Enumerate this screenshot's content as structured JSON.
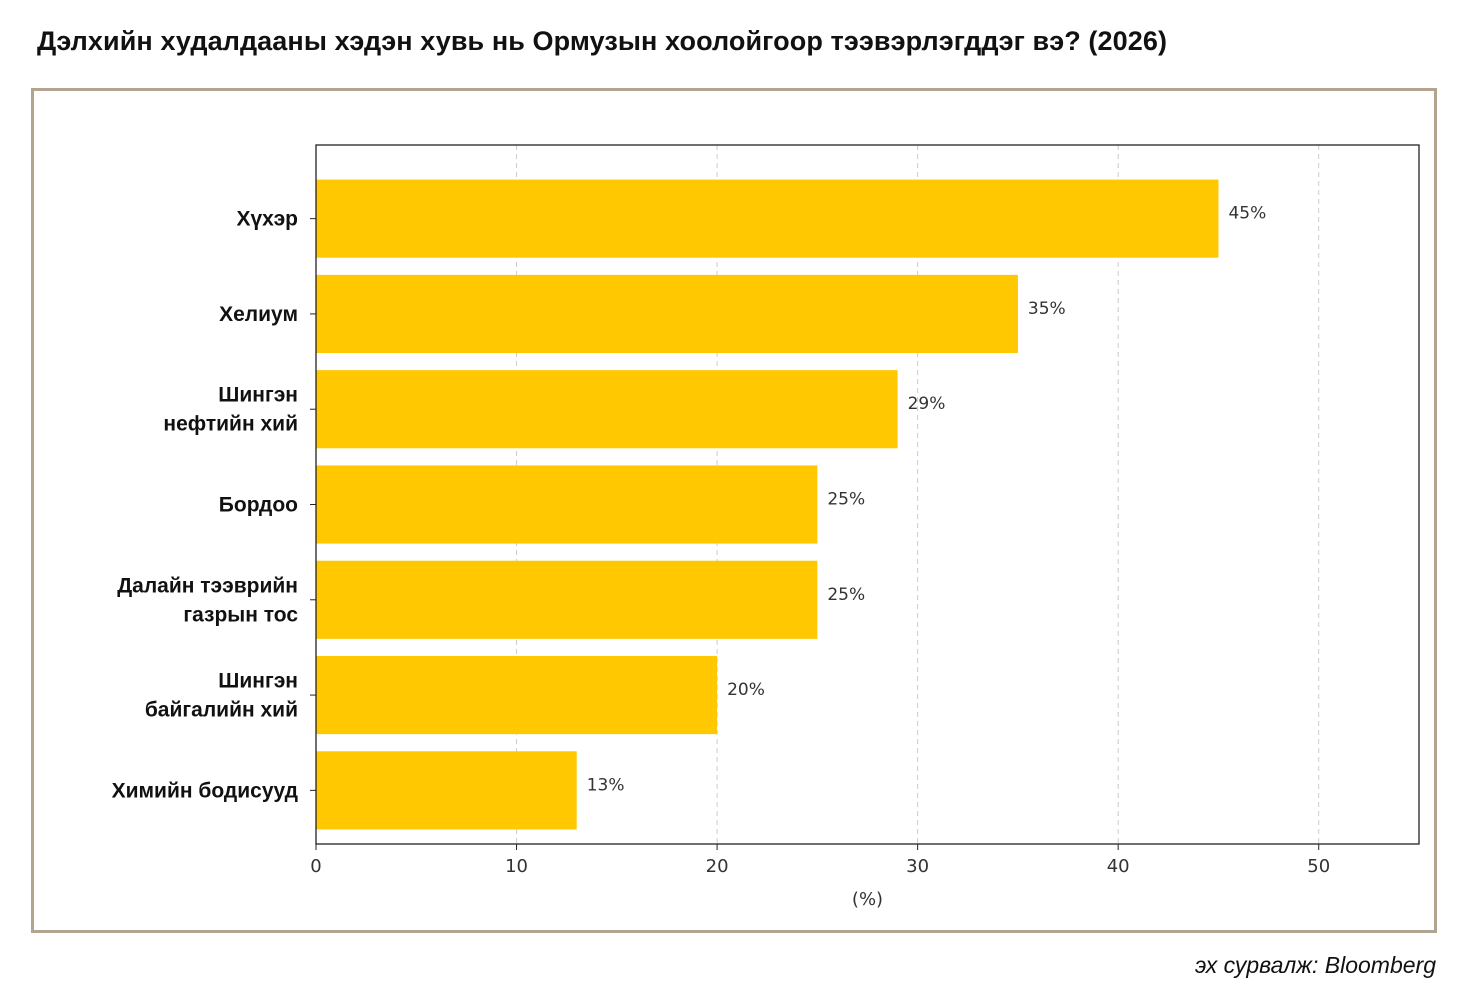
{
  "title": "Дэлхийн худалдааны хэдэн хувь нь Ормузын хоолойгоор тээвэрлэгддэг вэ? (2026)",
  "source": "эх сурвалж: Bloomberg",
  "colors": {
    "bar": "#ffc800",
    "frame": "#b3a48f",
    "grid": "#cccccc",
    "axis": "#222222"
  },
  "chart_data": {
    "type": "bar",
    "orientation": "horizontal",
    "title": "Дэлхийн худалдааны хэдэн хувь нь Ормузын хоолойгоор тээвэрлэгддэг вэ? (2026)",
    "xlabel": "(%)",
    "ylabel": "",
    "xlim": [
      0,
      55
    ],
    "xticks": [
      0,
      10,
      20,
      30,
      40,
      50
    ],
    "grid": "x-dashed",
    "categories": [
      [
        "Хүхэр"
      ],
      [
        "Хелиум"
      ],
      [
        "Шингэн",
        "нефтийн хий"
      ],
      [
        "Бордоо"
      ],
      [
        "Далайн тээврийн",
        "газрын тос"
      ],
      [
        "Шингэн",
        "байгалийн хий"
      ],
      [
        "Химийн бодисууд"
      ]
    ],
    "values": [
      45,
      35,
      29,
      25,
      25,
      20,
      13
    ],
    "value_labels": [
      "45%",
      "35%",
      "29%",
      "25%",
      "25%",
      "20%",
      "13%"
    ]
  }
}
